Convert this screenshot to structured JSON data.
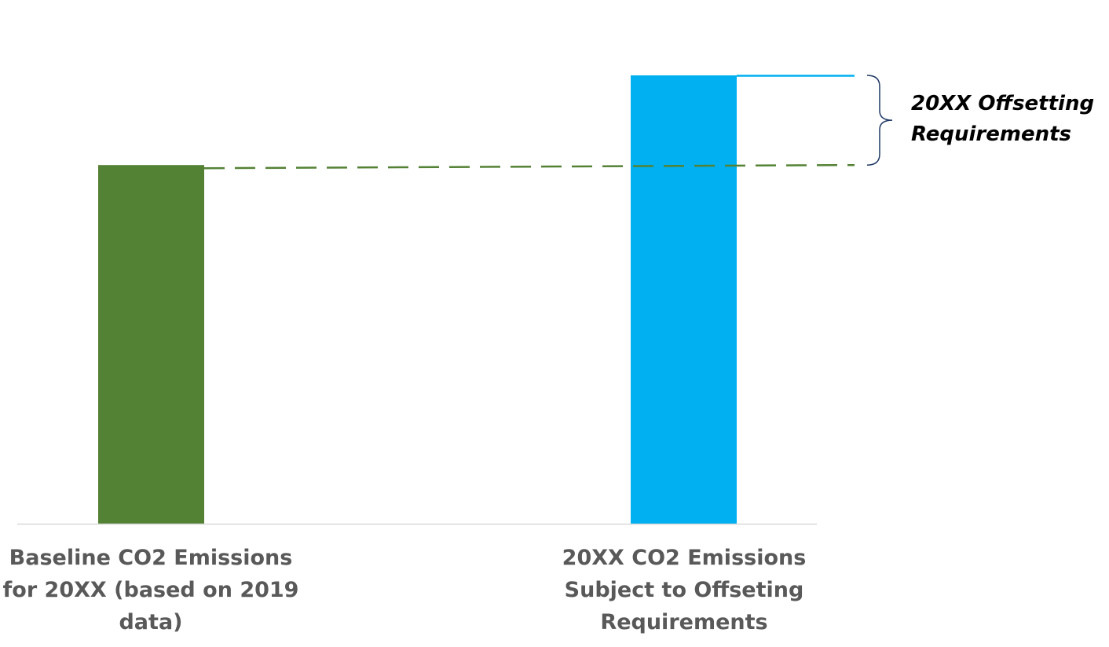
{
  "chart_data": {
    "type": "bar",
    "categories": [
      "Baseline CO2 Emissions for 20XX (based on 2019 data)",
      "20XX CO2 Emissions Subject to Offseting Requirements"
    ],
    "values": [
      80,
      100
    ],
    "colors": [
      "#548235",
      "#00B0F0"
    ],
    "ylim": [
      0,
      110
    ],
    "grid": false,
    "legend": "none",
    "reference_line": {
      "value": 80,
      "style": "dashed",
      "color": "#548235"
    },
    "annotation": {
      "text": "20XX Offsetting Requirements",
      "from_value": 80,
      "to_value": 100,
      "bracket_color": "#1F3864"
    },
    "axis_color": "#D9D9D9"
  }
}
